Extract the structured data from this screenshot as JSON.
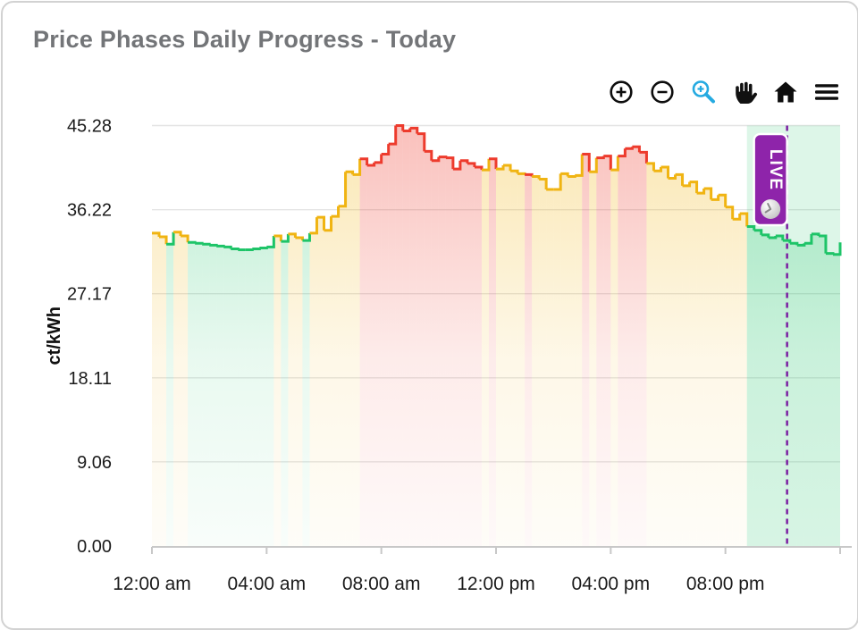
{
  "header": {
    "title": "Price Phases Daily Progress - Today"
  },
  "toolbar": {
    "items": [
      {
        "name": "zoom-in-icon",
        "color": "#0d0d0d",
        "active": false
      },
      {
        "name": "zoom-out-icon",
        "color": "#0d0d0d",
        "active": false
      },
      {
        "name": "box-zoom-icon",
        "color": "#25aae1",
        "active": true
      },
      {
        "name": "pan-hand-icon",
        "color": "#0d0d0d",
        "active": false
      },
      {
        "name": "home-icon",
        "color": "#0d0d0d",
        "active": false
      },
      {
        "name": "menu-icon",
        "color": "#0d0d0d",
        "active": false
      }
    ]
  },
  "chart_data": {
    "type": "area",
    "subtype": "step-area-phases",
    "title": "Price Phases Daily Progress - Today",
    "ylabel": "ct/kWh",
    "xlabel": "",
    "ylim": [
      0,
      45.28
    ],
    "x_range_hours": [
      0,
      24
    ],
    "grid": true,
    "y_ticks": [
      0,
      9.06,
      18.11,
      27.17,
      36.22,
      45.28
    ],
    "y_tick_labels": [
      "0.00",
      "9.06",
      "18.11",
      "27.17",
      "36.22",
      "45.28"
    ],
    "x_tick_hours": [
      0,
      4,
      8,
      12,
      16,
      20
    ],
    "x_tick_labels": [
      "12:00 am",
      "04:00 am",
      "08:00 am",
      "12:00 pm",
      "04:00 pm",
      "08:00 pm"
    ],
    "phase_colors": {
      "g": "#1ec468",
      "y": "#f0b412",
      "r": "#ed3b2d"
    },
    "live": {
      "badge_label": "LIVE",
      "badge_fill": "#8e24aa",
      "badge_border": "#ffffff",
      "badge_icon": "clock-icon",
      "now_line_color": "#7b1fa2",
      "zone_fill": "#1ec468",
      "zone_opacity": 0.15,
      "zone_start_hour": 20.75,
      "now_hour": 22.15
    },
    "series": [
      {
        "name": "price-phases",
        "unit": "ct/kWh",
        "step_hours": 0.25,
        "points": [
          [
            0.0,
            33.7,
            "y"
          ],
          [
            0.25,
            33.3,
            "y"
          ],
          [
            0.5,
            32.5,
            "g"
          ],
          [
            0.75,
            33.8,
            "y"
          ],
          [
            1.0,
            33.4,
            "y"
          ],
          [
            1.25,
            32.7,
            "g"
          ],
          [
            1.5,
            32.6,
            "g"
          ],
          [
            1.75,
            32.5,
            "g"
          ],
          [
            2.0,
            32.4,
            "g"
          ],
          [
            2.25,
            32.3,
            "g"
          ],
          [
            2.5,
            32.2,
            "g"
          ],
          [
            2.75,
            32.0,
            "g"
          ],
          [
            3.0,
            31.9,
            "g"
          ],
          [
            3.25,
            31.9,
            "g"
          ],
          [
            3.5,
            32.0,
            "g"
          ],
          [
            3.75,
            32.1,
            "g"
          ],
          [
            4.0,
            32.2,
            "g"
          ],
          [
            4.25,
            33.4,
            "y"
          ],
          [
            4.5,
            32.8,
            "g"
          ],
          [
            4.75,
            33.6,
            "y"
          ],
          [
            5.0,
            33.2,
            "y"
          ],
          [
            5.25,
            32.9,
            "g"
          ],
          [
            5.5,
            33.7,
            "y"
          ],
          [
            5.75,
            35.4,
            "y"
          ],
          [
            6.0,
            34.0,
            "y"
          ],
          [
            6.25,
            35.5,
            "y"
          ],
          [
            6.5,
            36.6,
            "y"
          ],
          [
            6.75,
            40.3,
            "y"
          ],
          [
            7.0,
            40.0,
            "y"
          ],
          [
            7.25,
            41.7,
            "r"
          ],
          [
            7.5,
            41.0,
            "r"
          ],
          [
            7.75,
            41.3,
            "r"
          ],
          [
            8.0,
            42.2,
            "r"
          ],
          [
            8.25,
            43.3,
            "r"
          ],
          [
            8.5,
            45.28,
            "r"
          ],
          [
            8.75,
            44.7,
            "r"
          ],
          [
            9.0,
            45.0,
            "r"
          ],
          [
            9.25,
            44.4,
            "r"
          ],
          [
            9.5,
            42.5,
            "r"
          ],
          [
            9.75,
            41.5,
            "r"
          ],
          [
            10.0,
            41.9,
            "r"
          ],
          [
            10.25,
            41.8,
            "r"
          ],
          [
            10.5,
            40.6,
            "r"
          ],
          [
            10.75,
            41.5,
            "r"
          ],
          [
            11.0,
            41.2,
            "r"
          ],
          [
            11.25,
            40.8,
            "r"
          ],
          [
            11.5,
            40.5,
            "y"
          ],
          [
            11.75,
            41.7,
            "r"
          ],
          [
            12.0,
            40.6,
            "y"
          ],
          [
            12.25,
            41.0,
            "y"
          ],
          [
            12.5,
            40.4,
            "y"
          ],
          [
            12.75,
            40.1,
            "y"
          ],
          [
            13.0,
            40.0,
            "r"
          ],
          [
            13.25,
            39.8,
            "y"
          ],
          [
            13.5,
            39.5,
            "y"
          ],
          [
            13.75,
            38.4,
            "y"
          ],
          [
            14.0,
            38.4,
            "y"
          ],
          [
            14.25,
            40.1,
            "y"
          ],
          [
            14.5,
            39.8,
            "y"
          ],
          [
            14.75,
            39.9,
            "y"
          ],
          [
            15.0,
            42.2,
            "r"
          ],
          [
            15.25,
            40.3,
            "y"
          ],
          [
            15.5,
            41.8,
            "r"
          ],
          [
            15.75,
            42.0,
            "r"
          ],
          [
            16.0,
            40.5,
            "y"
          ],
          [
            16.25,
            42.0,
            "r"
          ],
          [
            16.5,
            42.8,
            "r"
          ],
          [
            16.75,
            43.0,
            "r"
          ],
          [
            17.0,
            42.4,
            "r"
          ],
          [
            17.25,
            41.2,
            "y"
          ],
          [
            17.5,
            40.4,
            "y"
          ],
          [
            17.75,
            40.8,
            "y"
          ],
          [
            18.0,
            39.6,
            "y"
          ],
          [
            18.25,
            40.0,
            "y"
          ],
          [
            18.5,
            38.8,
            "y"
          ],
          [
            18.75,
            39.2,
            "y"
          ],
          [
            19.0,
            38.0,
            "y"
          ],
          [
            19.25,
            38.5,
            "y"
          ],
          [
            19.5,
            37.3,
            "y"
          ],
          [
            19.75,
            37.8,
            "y"
          ],
          [
            20.0,
            36.5,
            "y"
          ],
          [
            20.25,
            35.2,
            "y"
          ],
          [
            20.5,
            35.8,
            "y"
          ],
          [
            20.75,
            34.4,
            "g"
          ],
          [
            21.0,
            34.0,
            "g"
          ],
          [
            21.25,
            33.5,
            "g"
          ],
          [
            21.5,
            33.2,
            "g"
          ],
          [
            21.75,
            33.4,
            "g"
          ],
          [
            22.0,
            32.9,
            "g"
          ],
          [
            22.25,
            32.6,
            "g"
          ],
          [
            22.5,
            32.4,
            "g"
          ],
          [
            22.75,
            32.6,
            "g"
          ],
          [
            23.0,
            33.6,
            "g"
          ],
          [
            23.25,
            33.4,
            "g"
          ],
          [
            23.5,
            31.5,
            "g"
          ],
          [
            23.75,
            31.4,
            "g"
          ],
          [
            24.0,
            32.7,
            "g"
          ]
        ]
      }
    ]
  }
}
